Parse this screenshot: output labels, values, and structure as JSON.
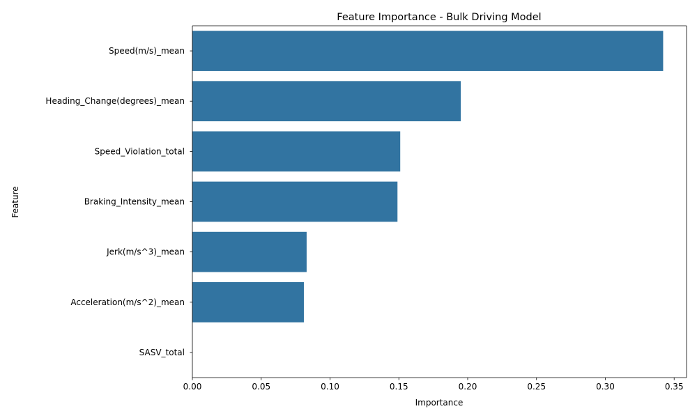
{
  "chart_data": {
    "type": "bar",
    "orientation": "horizontal",
    "title": "Feature Importance - Bulk Driving Model",
    "xlabel": "Importance",
    "ylabel": "Feature",
    "categories": [
      "Speed(m/s)_mean",
      "Heading_Change(degrees)_mean",
      "Speed_Violation_total",
      "Braking_Intensity_mean",
      "Jerk(m/s^3)_mean",
      "Acceleration(m/s^2)_mean",
      "SASV_total"
    ],
    "values": [
      0.342,
      0.195,
      0.151,
      0.149,
      0.083,
      0.081,
      0.0
    ],
    "xlim": [
      0,
      0.359
    ],
    "xticks": [
      0.0,
      0.05,
      0.1,
      0.15,
      0.2,
      0.25,
      0.3,
      0.35
    ],
    "xtick_labels": [
      "0.00",
      "0.05",
      "0.10",
      "0.15",
      "0.20",
      "0.25",
      "0.30",
      "0.35"
    ],
    "grid": false,
    "bar_color": "#3274a1"
  }
}
